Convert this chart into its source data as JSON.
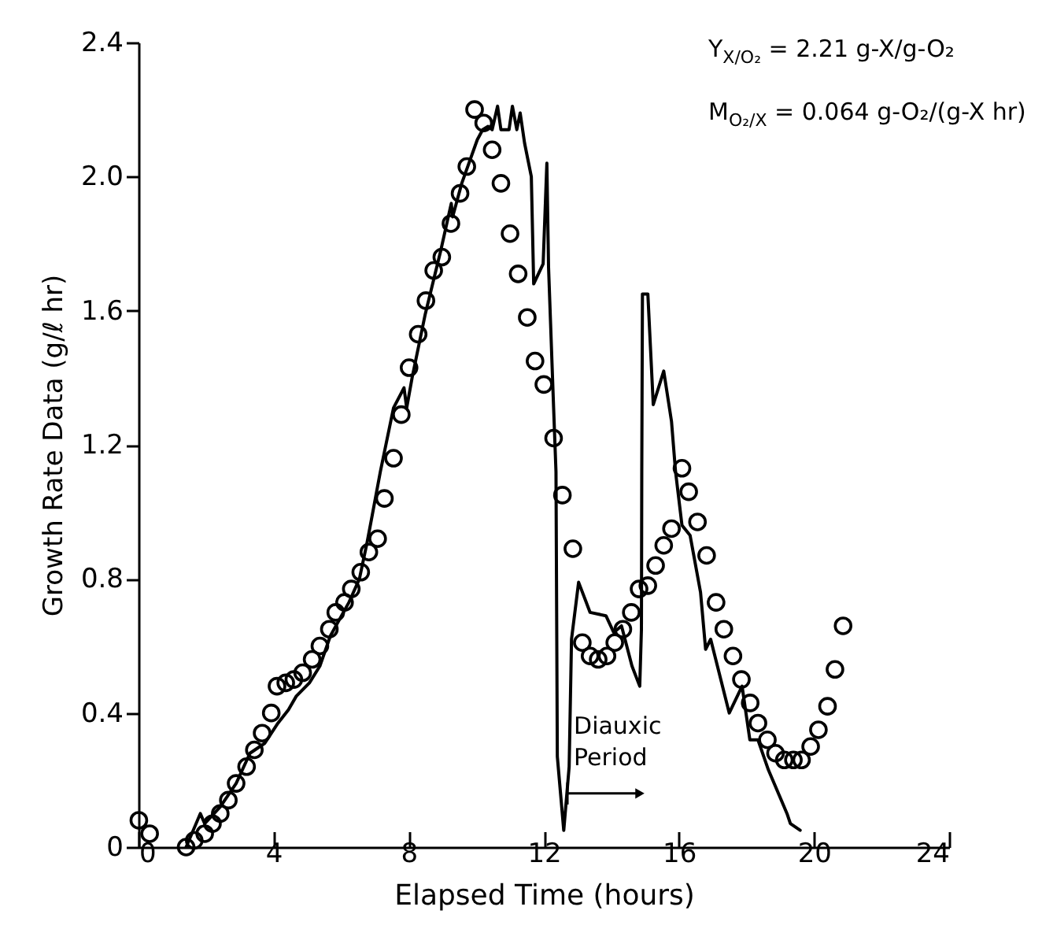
{
  "chart_data": {
    "type": "line",
    "xlabel": "Elapsed Time (hours)",
    "ylabel": "Growth Rate Data (g/ℓ hr)",
    "annotations": [
      "Y$_{X/O₂}$ = 2.21 g-X/g-O₂",
      "M$_{O₂/X}$ = 0.064 g-O₂/(g-X hr)",
      {
        "text": "Diauxic Period",
        "x": 12.7,
        "y": 0.16
      }
    ],
    "xlim": [
      0,
      24
    ],
    "xticks": [
      0,
      4,
      8,
      12,
      16,
      20,
      24
    ],
    "ylim": [
      0,
      2.4
    ],
    "yticks": [
      0,
      0.4,
      0.8,
      1.2,
      1.6,
      {
        "value": 2,
        "label": "2.0"
      },
      2.4
    ],
    "grid": false,
    "series": [
      {
        "type": "line",
        "color": "#000000",
        "line_style": "solid",
        "x": [
          1.41,
          1.83,
          1.96,
          2.42,
          2.89,
          3.3,
          3.74,
          4.13,
          4.44,
          4.67,
          5.06,
          5.37,
          5.68,
          6.23,
          6.54,
          6.77,
          6.92,
          7.16,
          7.55,
          7.86,
          7.94,
          8.1,
          8.49,
          8.95,
          9.26,
          9.3,
          9.57,
          10.03,
          10.19,
          10.35,
          10.47,
          10.63,
          10.73,
          10.97,
          11.07,
          11.2,
          11.3,
          11.43,
          11.63,
          11.7,
          11.98,
          12.09,
          12.14,
          12.29,
          12.36,
          12.4,
          12.59,
          12.75,
          12.82,
          13.03,
          13.37,
          13.84,
          14.07,
          14.3,
          14.61,
          14.84,
          14.89,
          14.9,
          14.92,
          15.08,
          15.24,
          15.55,
          15.78,
          15.9,
          16.09,
          16.33,
          16.64,
          16.79,
          16.94,
          17.49,
          17.87,
          18.1,
          18.34,
          18.65,
          19.2,
          19.3,
          19.59
        ],
        "values": [
          0,
          0.1,
          0.07,
          0.12,
          0.19,
          0.28,
          0.31,
          0.37,
          0.41,
          0.45,
          0.49,
          0.54,
          0.63,
          0.73,
          0.8,
          0.91,
          0.99,
          1.12,
          1.31,
          1.37,
          1.31,
          1.4,
          1.59,
          1.78,
          1.92,
          1.88,
          1.98,
          2.11,
          2.14,
          2.15,
          2.14,
          2.21,
          2.14,
          2.14,
          2.21,
          2.14,
          2.19,
          2.1,
          2.0,
          1.68,
          1.74,
          2.04,
          1.73,
          1.31,
          1.12,
          0.27,
          0.05,
          0.24,
          0.62,
          0.79,
          0.7,
          0.69,
          0.64,
          0.66,
          0.54,
          0.48,
          0.65,
          1.12,
          1.65,
          1.65,
          1.32,
          1.42,
          1.27,
          1.12,
          0.96,
          0.93,
          0.76,
          0.59,
          0.62,
          0.4,
          0.48,
          0.32,
          0.32,
          0.23,
          0.1,
          0.07,
          0.05
        ]
      },
      {
        "type": "scatter",
        "color": "#000000",
        "marker": "circle",
        "x": [
          0.01,
          0.33,
          1.41,
          1.65,
          1.96,
          2.19,
          2.42,
          2.66,
          2.89,
          3.2,
          3.43,
          3.66,
          3.93,
          4.1,
          4.36,
          4.6,
          4.86,
          5.14,
          5.37,
          5.65,
          5.84,
          6.1,
          6.3,
          6.58,
          6.82,
          7.08,
          7.28,
          7.55,
          7.78,
          8.01,
          8.28,
          8.51,
          8.74,
          8.98,
          9.25,
          9.52,
          9.72,
          9.95,
          10.22,
          10.47,
          10.73,
          11.0,
          11.24,
          11.51,
          11.74,
          12.0,
          12.29,
          12.55,
          12.86,
          13.14,
          13.37,
          13.61,
          13.87,
          14.1,
          14.34,
          14.59,
          14.82,
          15.08,
          15.31,
          15.55,
          15.78,
          16.09,
          16.29,
          16.55,
          16.82,
          17.1,
          17.33,
          17.6,
          17.85,
          18.11,
          18.34,
          18.62,
          18.86,
          19.12,
          19.39,
          19.63,
          19.9,
          20.13,
          20.4,
          20.62,
          20.86
        ],
        "values": [
          0.08,
          0.04,
          0,
          0.02,
          0.04,
          0.07,
          0.1,
          0.14,
          0.19,
          0.24,
          0.29,
          0.34,
          0.4,
          0.48,
          0.49,
          0.5,
          0.52,
          0.56,
          0.6,
          0.65,
          0.7,
          0.73,
          0.77,
          0.82,
          0.88,
          0.92,
          1.04,
          1.16,
          1.29,
          1.43,
          1.53,
          1.63,
          1.72,
          1.76,
          1.86,
          1.95,
          2.03,
          2.2,
          2.16,
          2.08,
          1.98,
          1.83,
          1.71,
          1.58,
          1.45,
          1.38,
          1.22,
          1.05,
          0.89,
          0.61,
          0.57,
          0.56,
          0.57,
          0.61,
          0.65,
          0.7,
          0.77,
          0.78,
          0.84,
          0.9,
          0.95,
          1.13,
          1.06,
          0.97,
          0.87,
          0.73,
          0.65,
          0.57,
          0.5,
          0.43,
          0.37,
          0.32,
          0.28,
          0.26,
          0.26,
          0.26,
          0.3,
          0.35,
          0.42,
          0.53,
          0.66
        ]
      }
    ]
  }
}
